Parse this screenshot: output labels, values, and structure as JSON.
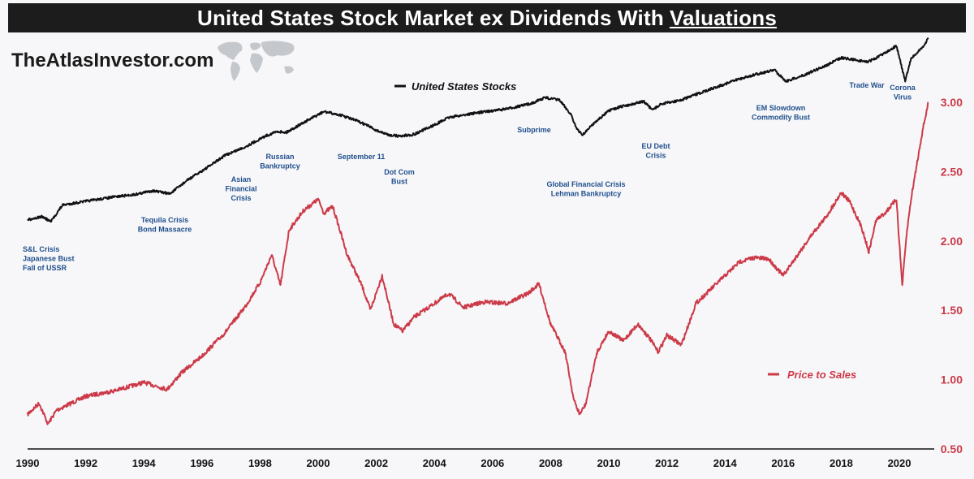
{
  "header": {
    "title_main": "United States Stock Market ex Dividends With",
    "title_emph": "Valuations",
    "brand": "TheAtlasInvestor.com"
  },
  "colors": {
    "stocks": "#111111",
    "price_to_sales": "#cc3a48",
    "annotation": "#1f4e8c",
    "title_bg": "#1c1c1c",
    "background": "#f7f7f9"
  },
  "chart_data": {
    "type": "line",
    "title": "United States Stock Market ex Dividends With Valuations",
    "xlim": [
      1990,
      2021.2
    ],
    "x_ticks": [
      "1990",
      "1992",
      "1994",
      "1996",
      "1998",
      "2000",
      "2002",
      "2004",
      "2006",
      "2008",
      "2010",
      "2012",
      "2014",
      "2016",
      "2018",
      "2020"
    ],
    "y_right_lim": [
      0.5,
      3.0
    ],
    "y_right_ticks": [
      "0.50",
      "1.00",
      "1.50",
      "2.00",
      "2.50",
      "3.00"
    ],
    "legend": {
      "stocks_label": "United States Stocks",
      "ps_label": "Price to Sales"
    },
    "series": [
      {
        "name": "United States Stocks",
        "axis": "unscaled",
        "x": [
          1990.0,
          1990.5,
          1990.8,
          1991.2,
          1992.0,
          1993.0,
          1993.7,
          1994.3,
          1994.9,
          1995.5,
          1996.2,
          1996.8,
          1997.5,
          1998.2,
          1998.6,
          1998.9,
          1999.5,
          2000.2,
          2000.8,
          2001.3,
          2001.7,
          2002.0,
          2002.4,
          2002.8,
          2003.3,
          2004.0,
          2004.5,
          2005.5,
          2006.5,
          2007.3,
          2007.8,
          2008.3,
          2008.7,
          2008.9,
          2009.1,
          2009.5,
          2010.0,
          2010.4,
          2011.2,
          2011.5,
          2011.8,
          2012.5,
          2013.5,
          2014.5,
          2015.2,
          2015.7,
          2016.1,
          2016.6,
          2017.5,
          2018.0,
          2018.9,
          2019.2,
          2019.9,
          2020.2,
          2020.4,
          2020.8,
          2021.0
        ],
        "values": [
          70,
          79,
          64,
          113,
          124,
          137,
          144,
          155,
          146,
          186,
          224,
          259,
          284,
          316,
          329,
          326,
          355,
          387,
          376,
          361,
          346,
          332,
          319,
          315,
          320,
          348,
          370,
          384,
          395,
          410,
          428,
          421,
          379,
          335,
          319,
          354,
          389,
          401,
          417,
          392,
          409,
          421,
          453,
          483,
          499,
          509,
          476,
          490,
          523,
          545,
          533,
          544,
          580,
          476,
          542,
          575,
          603
        ]
      },
      {
        "name": "Price to Sales",
        "axis": "right",
        "x": [
          1990.0,
          1990.4,
          1990.7,
          1991.0,
          1991.5,
          1992.0,
          1993.0,
          1994.0,
          1994.8,
          1995.3,
          1996.0,
          1996.8,
          1997.5,
          1998.0,
          1998.4,
          1998.7,
          1999.0,
          1999.5,
          2000.0,
          2000.2,
          2000.5,
          2001.0,
          2001.5,
          2001.8,
          2002.2,
          2002.6,
          2002.9,
          2003.3,
          2004.0,
          2004.5,
          2005.0,
          2005.7,
          2006.5,
          2007.2,
          2007.6,
          2008.0,
          2008.5,
          2008.8,
          2009.0,
          2009.2,
          2009.6,
          2010.0,
          2010.5,
          2011.0,
          2011.4,
          2011.7,
          2012.0,
          2012.5,
          2013.0,
          2013.5,
          2014.0,
          2014.5,
          2015.0,
          2015.5,
          2016.0,
          2016.5,
          2017.0,
          2017.5,
          2018.0,
          2018.3,
          2018.7,
          2018.95,
          2019.2,
          2019.5,
          2019.9,
          2020.1,
          2020.25,
          2020.4,
          2020.6,
          2020.8,
          2021.0
        ],
        "values": [
          0.75,
          0.83,
          0.68,
          0.78,
          0.83,
          0.88,
          0.92,
          0.98,
          0.93,
          1.05,
          1.17,
          1.34,
          1.53,
          1.7,
          1.9,
          1.68,
          2.08,
          2.22,
          2.3,
          2.2,
          2.25,
          1.9,
          1.68,
          1.5,
          1.75,
          1.4,
          1.35,
          1.45,
          1.55,
          1.62,
          1.52,
          1.56,
          1.55,
          1.62,
          1.69,
          1.4,
          1.2,
          0.85,
          0.75,
          0.82,
          1.2,
          1.35,
          1.28,
          1.4,
          1.3,
          1.2,
          1.32,
          1.25,
          1.55,
          1.65,
          1.75,
          1.85,
          1.88,
          1.87,
          1.75,
          1.9,
          2.05,
          2.18,
          2.35,
          2.28,
          2.1,
          1.92,
          2.15,
          2.2,
          2.3,
          1.68,
          2.05,
          2.3,
          2.55,
          2.8,
          3.0
        ]
      }
    ],
    "annotations": [
      {
        "lines": [
          "S&L Crisis",
          "Japanese Bust",
          "Fall of USSR"
        ]
      },
      {
        "lines": [
          "Tequila Crisis",
          "Bond Massacre"
        ]
      },
      {
        "lines": [
          "Asian",
          "Financial",
          "Crisis"
        ]
      },
      {
        "lines": [
          "Russian",
          "Bankruptcy"
        ]
      },
      {
        "lines": [
          "September 11"
        ]
      },
      {
        "lines": [
          "Dot Com",
          "Bust"
        ]
      },
      {
        "lines": [
          "Subprime"
        ]
      },
      {
        "lines": [
          "Global Financial Crisis",
          "Lehman Bankruptcy"
        ]
      },
      {
        "lines": [
          "EU Debt",
          "Crisis"
        ]
      },
      {
        "lines": [
          "EM Slowdown",
          "Commodity Bust"
        ]
      },
      {
        "lines": [
          "Trade War"
        ]
      },
      {
        "lines": [
          "Corona",
          "Virus"
        ]
      }
    ]
  }
}
